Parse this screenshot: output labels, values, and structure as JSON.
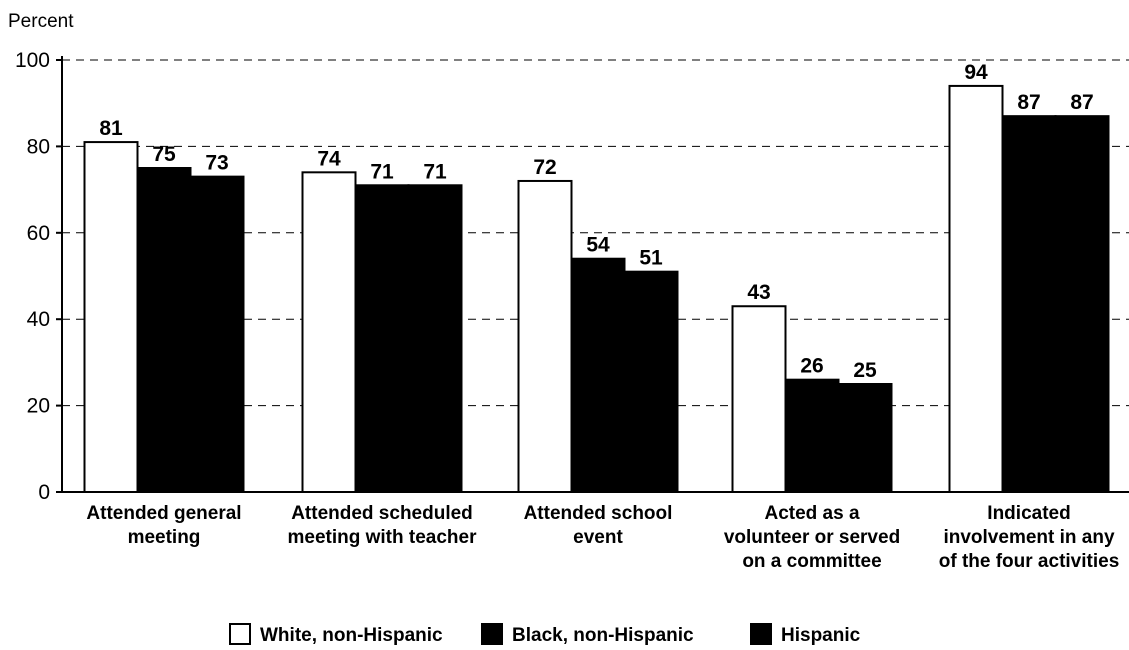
{
  "chart_data": {
    "type": "bar",
    "title": "",
    "ylabel": "Percent",
    "xlabel": "",
    "ylim": [
      0,
      100
    ],
    "yticks": [
      0,
      20,
      40,
      60,
      80,
      100
    ],
    "grid": true,
    "legend_position": "bottom",
    "categories": [
      [
        "Attended general",
        "meeting"
      ],
      [
        "Attended scheduled",
        "meeting with teacher"
      ],
      [
        "Attended school",
        "event"
      ],
      [
        "Acted as a",
        "volunteer or served",
        "on a committee"
      ],
      [
        "Indicated",
        "involvement in any",
        "of the four activities"
      ]
    ],
    "series": [
      {
        "name": "White, non-Hispanic",
        "color": "#ffffff",
        "values": [
          81,
          74,
          72,
          43,
          94
        ]
      },
      {
        "name": "Black, non-Hispanic",
        "color": "#000000",
        "values": [
          75,
          71,
          54,
          26,
          87
        ]
      },
      {
        "name": "Hispanic",
        "color": "#000000",
        "values": [
          73,
          71,
          51,
          25,
          87
        ]
      }
    ]
  }
}
